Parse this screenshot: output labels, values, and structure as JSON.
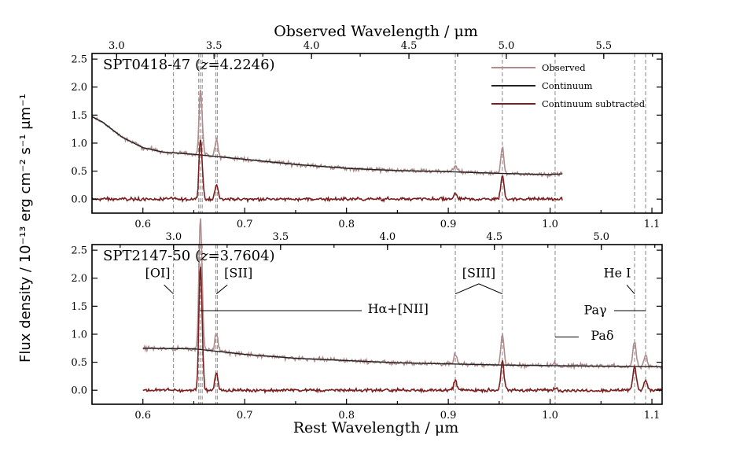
{
  "chart_data": {
    "type": "line",
    "x_label": "Rest Wavelength / μm",
    "y_label": "Flux density / 10⁻¹³ erg cm⁻² s⁻¹ μm⁻¹",
    "top_axis_label": "Observed Wavelength / μm",
    "x_range": [
      0.55,
      1.11
    ],
    "x_ticks": [
      "0.6",
      "0.7",
      "0.8",
      "0.9",
      "1.0",
      "1.1"
    ],
    "y_range": [
      -0.25,
      2.6
    ],
    "y_ticks": [
      "0.0",
      "0.5",
      "1.0",
      "1.5",
      "2.0",
      "2.5"
    ],
    "legend": {
      "placement": "top-right",
      "entries": [
        {
          "name": "Observed",
          "color": "#b08c8c"
        },
        {
          "name": "Continuum",
          "color": "#222222"
        },
        {
          "name": "Continuum subtracted",
          "color": "#7a1e1e"
        }
      ]
    },
    "line_markers_um": [
      0.63,
      0.6548,
      0.6563,
      0.6583,
      0.6716,
      0.6731,
      0.9069,
      0.9531,
      1.0049,
      1.083,
      1.0938
    ],
    "panels": [
      {
        "title_pre": "SPT0418-47 (",
        "title_z": "z",
        "title_post": "=4.2246)",
        "redshift": 4.2246,
        "top_ticks": [
          "3.0",
          "3.5",
          "4.0",
          "4.5",
          "5.0",
          "5.5"
        ],
        "data_range": [
          0.55,
          1.012
        ],
        "continuum": [
          [
            0.55,
            1.47
          ],
          [
            0.56,
            1.38
          ],
          [
            0.58,
            1.1
          ],
          [
            0.6,
            0.92
          ],
          [
            0.62,
            0.84
          ],
          [
            0.65,
            0.8
          ],
          [
            0.7,
            0.71
          ],
          [
            0.75,
            0.62
          ],
          [
            0.8,
            0.55
          ],
          [
            0.85,
            0.51
          ],
          [
            0.9,
            0.49
          ],
          [
            0.95,
            0.46
          ],
          [
            1.0,
            0.44
          ],
          [
            1.012,
            0.45
          ]
        ],
        "lines": [
          {
            "x": 0.6563,
            "amp": 1.05,
            "w": 0.0013
          },
          {
            "x": 0.6583,
            "amp": 0.35,
            "w": 0.0012
          },
          {
            "x": 0.6716,
            "amp": 0.18,
            "w": 0.0012
          },
          {
            "x": 0.6731,
            "amp": 0.16,
            "w": 0.0012
          },
          {
            "x": 0.9069,
            "amp": 0.12,
            "w": 0.0015
          },
          {
            "x": 0.9531,
            "amp": 0.45,
            "w": 0.0015
          }
        ]
      },
      {
        "title_pre": "SPT2147-50 (",
        "title_z": "z",
        "title_post": "=3.7604)",
        "redshift": 3.7604,
        "top_ticks": [
          "3.0",
          "3.5",
          "4.0",
          "4.5",
          "5.0"
        ],
        "data_range": [
          0.6,
          1.11
        ],
        "continuum": [
          [
            0.6,
            0.75
          ],
          [
            0.65,
            0.74
          ],
          [
            0.7,
            0.64
          ],
          [
            0.75,
            0.57
          ],
          [
            0.8,
            0.53
          ],
          [
            0.85,
            0.49
          ],
          [
            0.9,
            0.47
          ],
          [
            0.95,
            0.45
          ],
          [
            1.0,
            0.44
          ],
          [
            1.05,
            0.43
          ],
          [
            1.11,
            0.42
          ]
        ],
        "lines": [
          {
            "x": 0.6563,
            "amp": 2.2,
            "w": 0.0014
          },
          {
            "x": 0.6583,
            "amp": 0.5,
            "w": 0.0012
          },
          {
            "x": 0.6716,
            "amp": 0.22,
            "w": 0.0012
          },
          {
            "x": 0.6731,
            "amp": 0.18,
            "w": 0.0012
          },
          {
            "x": 0.9069,
            "amp": 0.18,
            "w": 0.0015
          },
          {
            "x": 0.9531,
            "amp": 0.55,
            "w": 0.0015
          },
          {
            "x": 1.0049,
            "amp": 0.05,
            "w": 0.0015
          },
          {
            "x": 1.083,
            "amp": 0.45,
            "w": 0.0016
          },
          {
            "x": 1.0938,
            "amp": 0.2,
            "w": 0.0016
          }
        ],
        "annotations": [
          {
            "key": "oi",
            "text": "[OI]"
          },
          {
            "key": "sii",
            "text": "[SII]"
          },
          {
            "key": "halpha",
            "text": "Hα+[NII]"
          },
          {
            "key": "siii",
            "text": "[SIII]"
          },
          {
            "key": "hei",
            "text": "He I"
          },
          {
            "key": "pag",
            "text": "Paγ"
          },
          {
            "key": "pad",
            "text": "Paδ"
          }
        ]
      }
    ]
  }
}
